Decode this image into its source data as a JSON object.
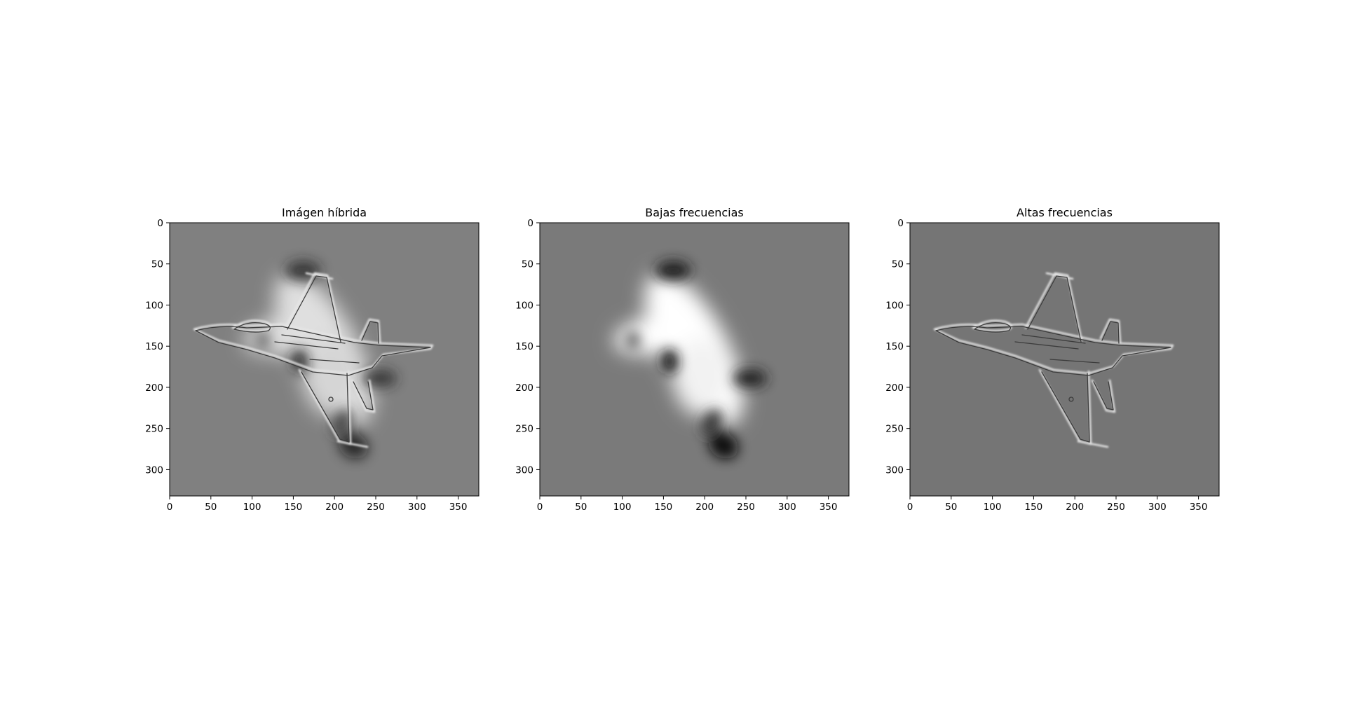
{
  "colors": {
    "background": "#ffffff",
    "axes_frame": "#000000",
    "image_mid_gray": "#808080",
    "image_mid_gray_low": "#7a7a7a",
    "image_mid_gray_high": "#757575"
  },
  "chart_data": [
    {
      "type": "image",
      "title": "Imágen híbrida",
      "xlim": [
        0,
        375
      ],
      "ylim": [
        332,
        0
      ],
      "xticks": [
        0,
        50,
        100,
        150,
        200,
        250,
        300,
        350
      ],
      "yticks": [
        0,
        50,
        100,
        150,
        200,
        250,
        300
      ],
      "colormap": "gray",
      "content": "hybrid of blurred bird and sharp-edged fighter jet"
    },
    {
      "type": "image",
      "title": "Bajas frecuencias",
      "xlim": [
        0,
        375
      ],
      "ylim": [
        332,
        0
      ],
      "xticks": [
        0,
        50,
        100,
        150,
        200,
        250,
        300,
        350
      ],
      "yticks": [
        0,
        50,
        100,
        150,
        200,
        250,
        300
      ],
      "colormap": "gray",
      "content": "low-pass filtered bird silhouette"
    },
    {
      "type": "image",
      "title": "Altas frecuencias",
      "xlim": [
        0,
        375
      ],
      "ylim": [
        332,
        0
      ],
      "xticks": [
        0,
        50,
        100,
        150,
        200,
        250,
        300,
        350
      ],
      "yticks": [
        0,
        50,
        100,
        150,
        200,
        250,
        300
      ],
      "colormap": "gray",
      "content": "high-pass filtered fighter jet edges"
    }
  ]
}
